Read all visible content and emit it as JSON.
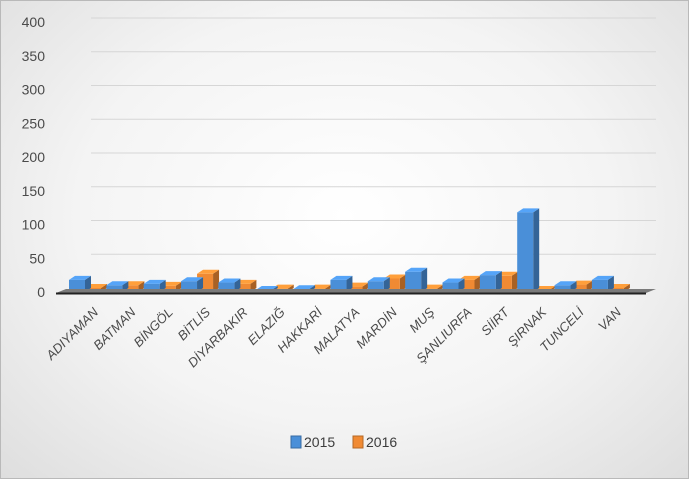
{
  "chart_data": {
    "type": "bar",
    "categories": [
      "ADIYAMAN",
      "BATMAN",
      "BİNGÖL",
      "BİTLİS",
      "DİYARBAKIR",
      "ELAZIĞ",
      "HAKKARİ",
      "MALATYA",
      "MARDİN",
      "MUŞ",
      "ŞANLIURFA",
      "SİİRT",
      "ŞIRNAK",
      "TUNCELİ",
      "VAN"
    ],
    "series": [
      {
        "name": "2015",
        "values": [
          18,
          10,
          12,
          16,
          14,
          3,
          4,
          18,
          16,
          30,
          14,
          25,
          118,
          10,
          18
        ],
        "color": "#4a8fd8"
      },
      {
        "name": "2016",
        "values": [
          6,
          10,
          9,
          27,
          12,
          5,
          5,
          8,
          20,
          5,
          18,
          24,
          3,
          11,
          6
        ],
        "color": "#f08a33"
      }
    ],
    "yticks": [
      0,
      50,
      100,
      150,
      200,
      250,
      300,
      350,
      400
    ],
    "ylim": [
      0,
      400
    ],
    "grid": true,
    "legend_position": "bottom",
    "title": "",
    "xlabel": "",
    "ylabel": ""
  }
}
